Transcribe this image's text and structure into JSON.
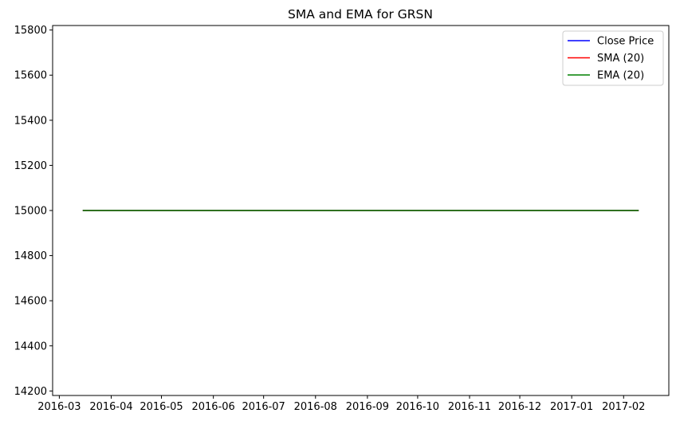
{
  "chart_data": {
    "type": "line",
    "title": "SMA and EMA for GRSN",
    "xlabel": "",
    "ylabel": "",
    "x_start": "2016-03-15",
    "x_end": "2017-02-10",
    "xlim": [
      "2016-02-26",
      "2017-02-28"
    ],
    "ylim": [
      14180,
      15820
    ],
    "x_ticks": [
      "2016-03",
      "2016-04",
      "2016-05",
      "2016-06",
      "2016-07",
      "2016-08",
      "2016-09",
      "2016-10",
      "2016-11",
      "2016-12",
      "2017-01",
      "2017-02"
    ],
    "y_ticks": [
      14200,
      14400,
      14600,
      14800,
      15000,
      15200,
      15400,
      15600,
      15800
    ],
    "series": [
      {
        "name": "Close Price",
        "color": "#0000ff",
        "values": [
          15000,
          15000
        ]
      },
      {
        "name": "SMA (20)",
        "color": "#ff0000",
        "values": [
          15000,
          15000
        ]
      },
      {
        "name": "EMA (20)",
        "color": "#008000",
        "values": [
          15000,
          15000
        ]
      }
    ],
    "legend_position": "top-right",
    "grid": false
  }
}
